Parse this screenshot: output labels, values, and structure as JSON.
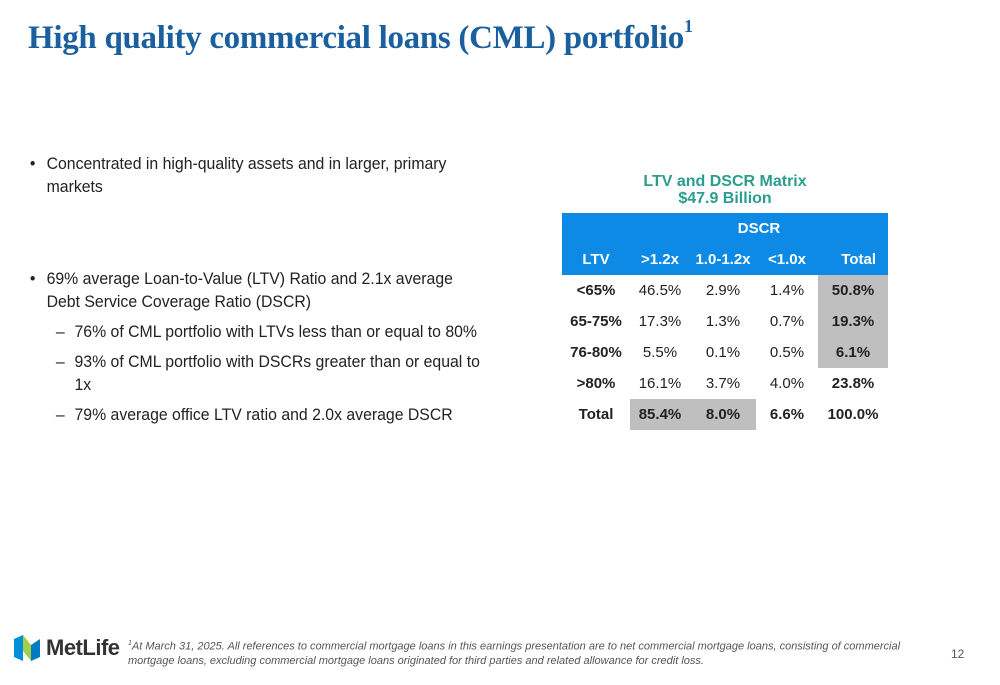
{
  "title": {
    "text": "High quality commercial loans (CML) portfolio",
    "superscript": "1"
  },
  "bullets": [
    {
      "text": "Concentrated in high-quality assets and in larger, primary markets",
      "subs": []
    },
    {
      "text": "69% average Loan-to-Value (LTV) Ratio and 2.1x average Debt Service Coverage Ratio (DSCR)",
      "subs": [
        "76% of CML portfolio with LTVs less than or equal to 80%",
        "93% of CML portfolio with DSCRs greater than or equal to 1x",
        "79% average office LTV ratio and 2.0x average DSCR"
      ]
    }
  ],
  "matrix": {
    "title": "LTV and DSCR Matrix",
    "subtitle": "$47.9 Billion",
    "group_header": "DSCR",
    "columns": [
      "LTV",
      ">1.2x",
      "1.0-1.2x",
      "<1.0x",
      "Total"
    ],
    "rows": [
      {
        "label": "<65%",
        "cells": [
          "46.5%",
          "2.9%",
          "1.4%",
          "50.8%"
        ]
      },
      {
        "label": "65-75%",
        "cells": [
          "17.3%",
          "1.3%",
          "0.7%",
          "19.3%"
        ]
      },
      {
        "label": "76-80%",
        "cells": [
          "5.5%",
          "0.1%",
          "0.5%",
          "6.1%"
        ]
      },
      {
        "label": ">80%",
        "cells": [
          "16.1%",
          "3.7%",
          "4.0%",
          "23.8%"
        ]
      },
      {
        "label": "Total",
        "cells": [
          "85.4%",
          "8.0%",
          "6.6%",
          "100.0%"
        ]
      }
    ],
    "highlight_color": "#bfbfbf",
    "header_color": "#0d8ae6",
    "title_color": "#2a9d8f"
  },
  "footer": {
    "logo_text": "MetLife",
    "logo_colors": [
      "#0090da",
      "#a4ce4e",
      "#007ac2"
    ],
    "footnote_marker": "1",
    "footnote": "At March 31, 2025. All references to commercial mortgage loans in this earnings presentation are to net commercial mortgage loans, consisting of commercial mortgage loans, excluding commercial mortgage loans originated for third parties and related allowance for credit loss.",
    "page_number": "12"
  }
}
